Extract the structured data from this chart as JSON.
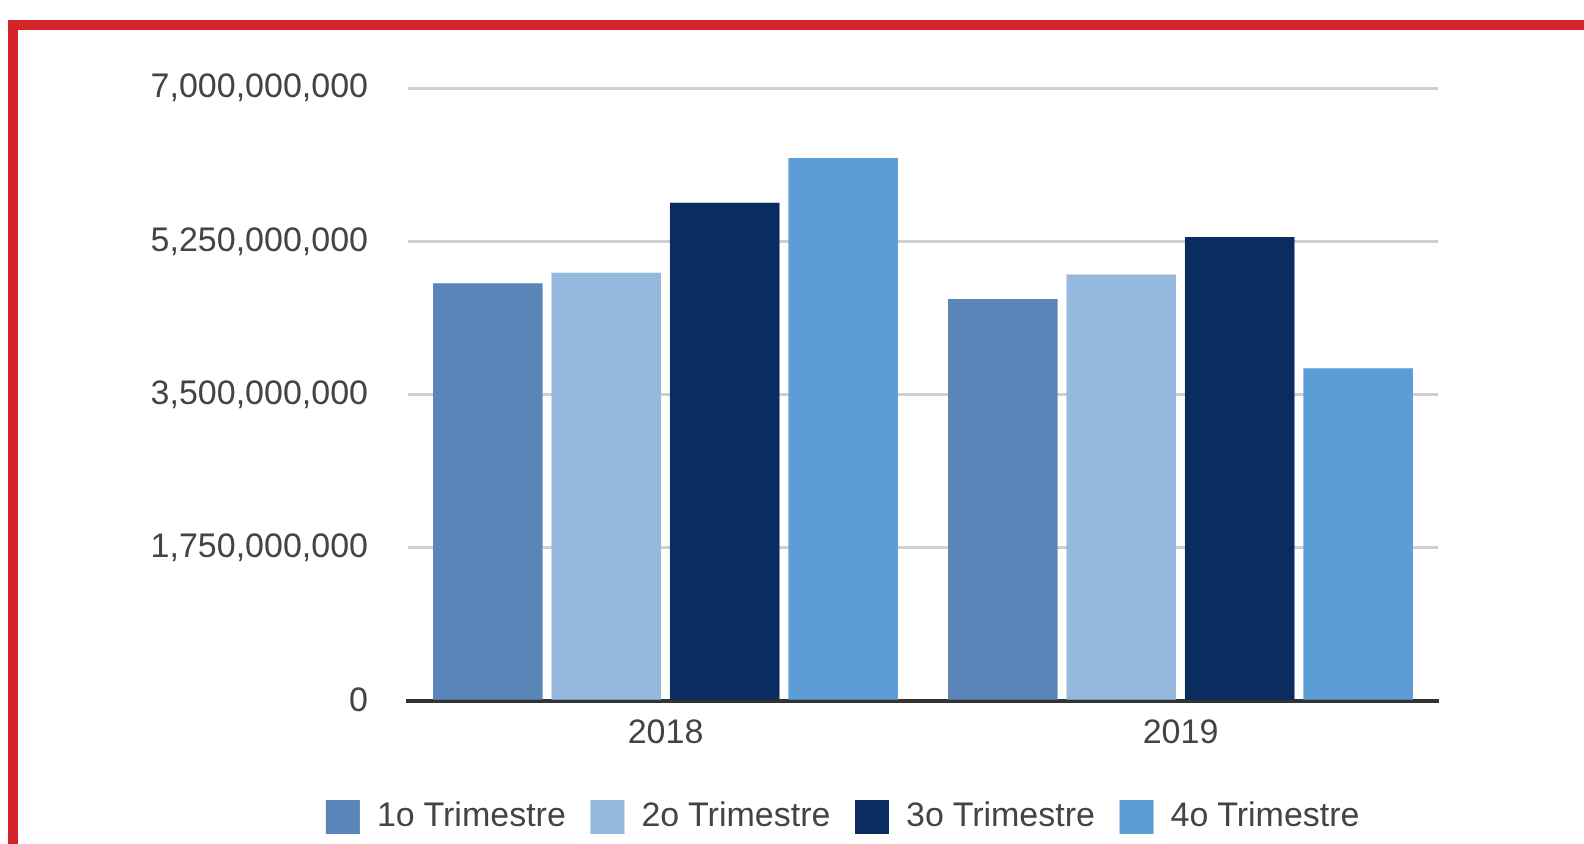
{
  "chart_data": {
    "type": "bar",
    "categories": [
      "2018",
      "2019"
    ],
    "series": [
      {
        "name": "1o Trimestre",
        "color": "#5a85b9",
        "values": [
          4770000000,
          4590000000
        ]
      },
      {
        "name": "2o Trimestre",
        "color": "#95b8dd",
        "values": [
          4890000000,
          4870000000
        ]
      },
      {
        "name": "3o Trimestre",
        "color": "#0b2c60",
        "values": [
          5690000000,
          5300000000
        ]
      },
      {
        "name": "4o Trimestre",
        "color": "#5c9dd6",
        "values": [
          6200000000,
          3800000000
        ]
      }
    ],
    "ylim": [
      0,
      7000000000
    ],
    "yticks": [
      {
        "value": 0,
        "label": "0"
      },
      {
        "value": 1750000000,
        "label": "1,750,000,000"
      },
      {
        "value": 3500000000,
        "label": "3,500,000,000"
      },
      {
        "value": 5250000000,
        "label": "5,250,000,000"
      },
      {
        "value": 7000000000,
        "label": "7,000,000,000"
      }
    ],
    "grid": "y",
    "legend": "bottom"
  }
}
